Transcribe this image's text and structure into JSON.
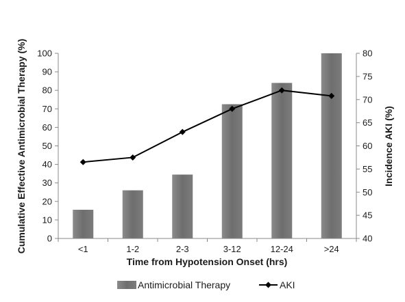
{
  "chart_data": {
    "type": "bar+line",
    "categories": [
      "<1",
      "1-2",
      "2-3",
      "3-12",
      "12-24",
      ">24"
    ],
    "xlabel": "Time from Hypotension Onset (hrs)",
    "ylabel_left": "Cumulative Effective Antimicrobial Therapy (%)",
    "ylabel_right": "Incidence AKI (%)",
    "ylim_left": [
      0,
      100
    ],
    "ylim_right": [
      40,
      80
    ],
    "yticks_left": [
      "0",
      "10",
      "20",
      "30",
      "40",
      "50",
      "60",
      "70",
      "80",
      "90",
      "100"
    ],
    "yticks_right": [
      "40",
      "45",
      "50",
      "55",
      "60",
      "65",
      "70",
      "75",
      "80"
    ],
    "grid": false,
    "legend_position": "bottom",
    "series": [
      {
        "name": "Antimicrobial Therapy",
        "kind": "bar",
        "axis": "left",
        "color": "#7a7a7a",
        "values": [
          15.5,
          26,
          34.5,
          72.5,
          84,
          100
        ]
      },
      {
        "name": "AKI",
        "kind": "line",
        "axis": "right",
        "color": "#000000",
        "marker": "diamond",
        "values": [
          56.5,
          57.5,
          63,
          68,
          72,
          70.8
        ]
      }
    ]
  }
}
